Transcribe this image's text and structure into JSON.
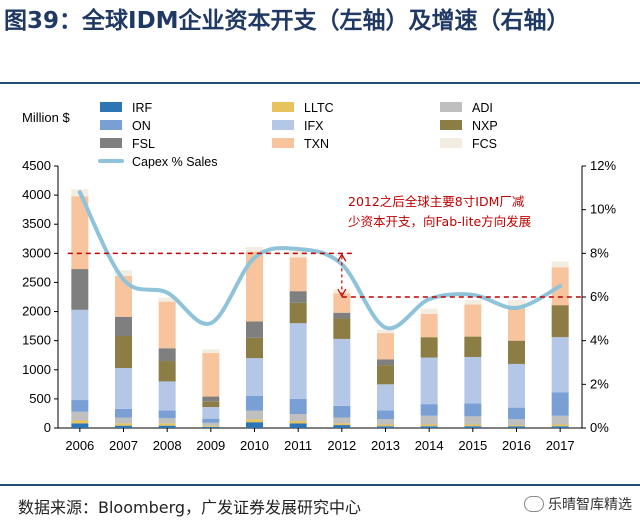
{
  "title": "图39：全球IDM企业资本开支（左轴）及增速（右轴）",
  "source": "数据来源：Bloomberg，广发证券发展研究中心",
  "watermark": "乐晴智库精选",
  "watermark_icon": "wechat-icon",
  "chart_data": {
    "type": "bar",
    "stacked": true,
    "y_left_label": "Million $",
    "categories": [
      "2006",
      "2007",
      "2008",
      "2009",
      "2010",
      "2011",
      "2012",
      "2013",
      "2014",
      "2015",
      "2016",
      "2017"
    ],
    "ylim": [
      0,
      4500
    ],
    "yticks": [
      "0",
      "500",
      "1000",
      "1500",
      "2000",
      "2500",
      "3000",
      "3500",
      "4000",
      "4500"
    ],
    "y2lim": [
      0,
      12
    ],
    "y2ticks": [
      "0%",
      "2%",
      "4%",
      "6%",
      "8%",
      "10%",
      "12%"
    ],
    "grid": false,
    "legend_position": "top",
    "series": [
      {
        "name": "IRF",
        "color": "#2e75b6",
        "values": [
          80,
          40,
          40,
          20,
          100,
          80,
          50,
          30,
          30,
          30,
          30,
          30
        ]
      },
      {
        "name": "LLTC",
        "color": "#e6c35c",
        "values": [
          50,
          40,
          40,
          20,
          50,
          40,
          30,
          30,
          30,
          30,
          20,
          30
        ]
      },
      {
        "name": "ADI",
        "color": "#bfbfbf",
        "values": [
          150,
          100,
          90,
          50,
          150,
          120,
          100,
          90,
          150,
          140,
          100,
          150
        ]
      },
      {
        "name": "ON",
        "color": "#7a9fd4",
        "values": [
          200,
          150,
          130,
          70,
          250,
          260,
          200,
          150,
          200,
          220,
          200,
          400
        ]
      },
      {
        "name": "IFX",
        "color": "#b4c7e7",
        "values": [
          1550,
          700,
          500,
          200,
          650,
          1300,
          1150,
          450,
          800,
          800,
          750,
          950
        ]
      },
      {
        "name": "NXP",
        "color": "#8c7d45",
        "values": [
          0,
          550,
          350,
          100,
          350,
          350,
          350,
          330,
          350,
          350,
          400,
          550
        ]
      },
      {
        "name": "FSL",
        "color": "#7f7f7f",
        "values": [
          700,
          330,
          220,
          80,
          280,
          200,
          100,
          100,
          0,
          0,
          0,
          0
        ]
      },
      {
        "name": "TXN",
        "color": "#f8c49e",
        "values": [
          1250,
          700,
          800,
          750,
          1200,
          580,
          330,
          450,
          400,
          550,
          600,
          650
        ]
      },
      {
        "name": "FCS",
        "color": "#f2ede0",
        "values": [
          120,
          100,
          70,
          60,
          80,
          170,
          70,
          60,
          90,
          80,
          100,
          100
        ]
      }
    ],
    "line_series": {
      "name": "Capex % Sales",
      "color": "#8fc3d9",
      "axis": "right",
      "values": [
        10.8,
        6.8,
        6.2,
        4.8,
        7.8,
        8.2,
        7.5,
        4.6,
        5.9,
        6.1,
        5.5,
        6.5
      ]
    },
    "annotation": {
      "text_line1": "2012之后全球主要8寸IDM厂减",
      "text_line2": "少资本开支，向Fab-lite方向发展",
      "color": "#c00000",
      "from_value_pct": 8,
      "to_value_pct": 6
    }
  }
}
